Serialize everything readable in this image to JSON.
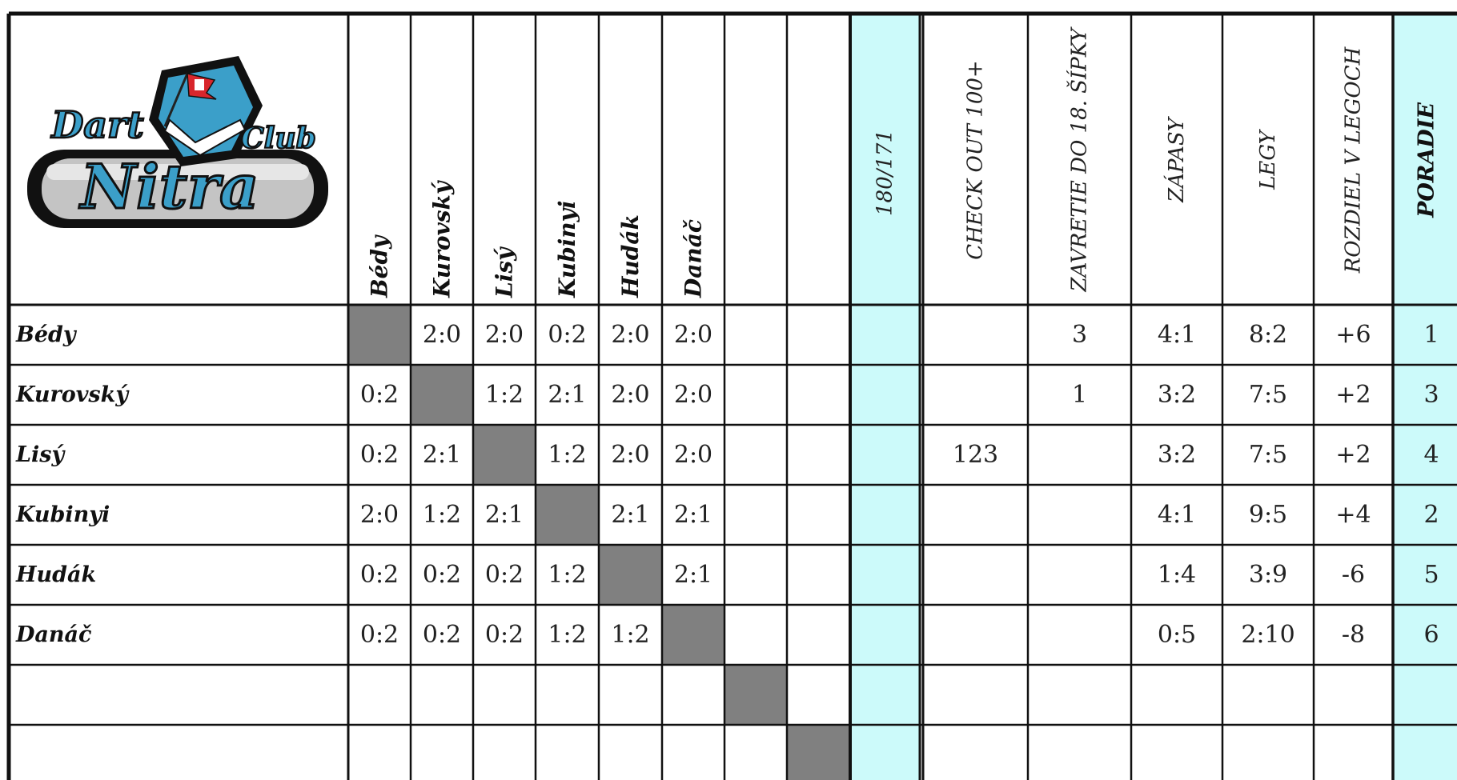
{
  "logo": {
    "words": [
      "Dart",
      "Club",
      "Nitra"
    ],
    "colors": {
      "blue": "#3b9fc9",
      "dark": "#111111",
      "grey": "#c4c4c4",
      "flag": "#d8262c"
    }
  },
  "players": [
    "Bédy",
    "Kurovský",
    "Lisý",
    "Kubinyi",
    "Hudák",
    "Danáč",
    "",
    ""
  ],
  "stat_headers": {
    "s180": "180/171",
    "checkout": "CHECK OUT 100+",
    "zavretie": "ZAVRETIE DO 18. ŠÍPKY",
    "zapasy": "ZÁPASY",
    "legy": "LEGY",
    "rozdiel": "ROZDIEL V LEGOCH",
    "poradie": "PORADIE"
  },
  "results": [
    [
      "",
      "2:0",
      "2:0",
      "0:2",
      "2:0",
      "2:0",
      "",
      ""
    ],
    [
      "0:2",
      "",
      "1:2",
      "2:1",
      "2:0",
      "2:0",
      "",
      ""
    ],
    [
      "0:2",
      "2:1",
      "",
      "1:2",
      "2:0",
      "2:0",
      "",
      ""
    ],
    [
      "2:0",
      "1:2",
      "2:1",
      "",
      "2:1",
      "2:1",
      "",
      ""
    ],
    [
      "0:2",
      "0:2",
      "0:2",
      "1:2",
      "",
      "2:1",
      "",
      ""
    ],
    [
      "0:2",
      "0:2",
      "0:2",
      "1:2",
      "1:2",
      "",
      "",
      ""
    ],
    [
      "",
      "",
      "",
      "",
      "",
      "",
      "",
      ""
    ],
    [
      "",
      "",
      "",
      "",
      "",
      "",
      "",
      ""
    ]
  ],
  "stats": [
    {
      "s180": "",
      "checkout": "",
      "zavretie": "3",
      "zapasy": "4:1",
      "legy": "8:2",
      "rozdiel": "+6",
      "poradie": "1"
    },
    {
      "s180": "",
      "checkout": "",
      "zavretie": "1",
      "zapasy": "3:2",
      "legy": "7:5",
      "rozdiel": "+2",
      "poradie": "3"
    },
    {
      "s180": "",
      "checkout": "123",
      "zavretie": "",
      "zapasy": "3:2",
      "legy": "7:5",
      "rozdiel": "+2",
      "poradie": "4"
    },
    {
      "s180": "",
      "checkout": "",
      "zavretie": "",
      "zapasy": "4:1",
      "legy": "9:5",
      "rozdiel": "+4",
      "poradie": "2"
    },
    {
      "s180": "",
      "checkout": "",
      "zavretie": "",
      "zapasy": "1:4",
      "legy": "3:9",
      "rozdiel": "-6",
      "poradie": "5"
    },
    {
      "s180": "",
      "checkout": "",
      "zavretie": "",
      "zapasy": "0:5",
      "legy": "2:10",
      "rozdiel": "-8",
      "poradie": "6"
    },
    {
      "s180": "",
      "checkout": "",
      "zavretie": "",
      "zapasy": "",
      "legy": "",
      "rozdiel": "",
      "poradie": ""
    },
    {
      "s180": "",
      "checkout": "",
      "zavretie": "",
      "zapasy": "",
      "legy": "",
      "rozdiel": "",
      "poradie": ""
    }
  ],
  "colors": {
    "cyan": "#ccfafa",
    "diag": "#808080",
    "grid": "#111111"
  }
}
